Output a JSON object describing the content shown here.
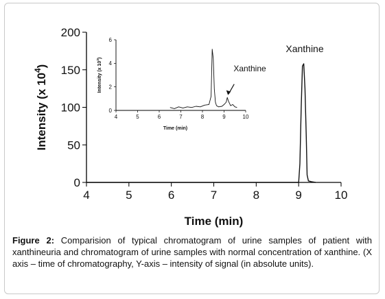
{
  "chart_data": [
    {
      "type": "line",
      "ylabel_prefix": "Intensity (x 10",
      "ylabel_exp": "4",
      "ylabel_suffix": ")",
      "xlabel": "Time (min)",
      "xlim": [
        4,
        10
      ],
      "ylim": [
        0,
        200
      ],
      "xticks": [
        "4",
        "5",
        "6",
        "7",
        "8",
        "9",
        "10"
      ],
      "yticks": [
        "0",
        "50",
        "100",
        "150",
        "200"
      ],
      "annotation": "Xanthine",
      "series": [
        {
          "x": [
            4.0,
            9.0,
            9.03,
            9.06,
            9.09,
            9.12,
            9.15,
            9.18,
            9.2,
            9.23,
            9.3,
            9.4
          ],
          "y": [
            0,
            0,
            25,
            100,
            155,
            158,
            125,
            60,
            10,
            2,
            1,
            0
          ]
        }
      ]
    },
    {
      "type": "line",
      "ylabel_prefix": "Intensity (x 10",
      "ylabel_exp": "3",
      "ylabel_suffix": ")",
      "xlabel": "Time (min)",
      "xlim": [
        4,
        10
      ],
      "ylim": [
        0,
        6
      ],
      "xticks": [
        "4",
        "5",
        "6",
        "7",
        "8",
        "9",
        "10"
      ],
      "yticks": [
        "0",
        "2",
        "4",
        "6"
      ],
      "annotation": "Xanthine",
      "series": [
        {
          "x": [
            6.5,
            6.7,
            6.9,
            7.1,
            7.3,
            7.5,
            7.7,
            7.9,
            8.1,
            8.3,
            8.4,
            8.45,
            8.5,
            8.55,
            8.6,
            8.65,
            8.75,
            8.9,
            9.0,
            9.1,
            9.15,
            9.2,
            9.3,
            9.4,
            9.5,
            9.6
          ],
          "y": [
            0.25,
            0.15,
            0.3,
            0.2,
            0.3,
            0.25,
            0.35,
            0.3,
            0.45,
            0.5,
            1.2,
            5.2,
            4.4,
            1.8,
            0.7,
            0.4,
            0.3,
            0.35,
            0.5,
            0.7,
            1.1,
            0.8,
            0.4,
            0.5,
            0.3,
            0.25
          ]
        }
      ]
    }
  ],
  "caption": {
    "label": "Figure 2:",
    "text": " Comparision of typical chromatogram of urine samples of patient with xanthineuria and chromatogram of urine samples with normal concentration of xanthine. (X axis – time of chromatography, Y-axis – intensity of signal (in absolute units)."
  }
}
